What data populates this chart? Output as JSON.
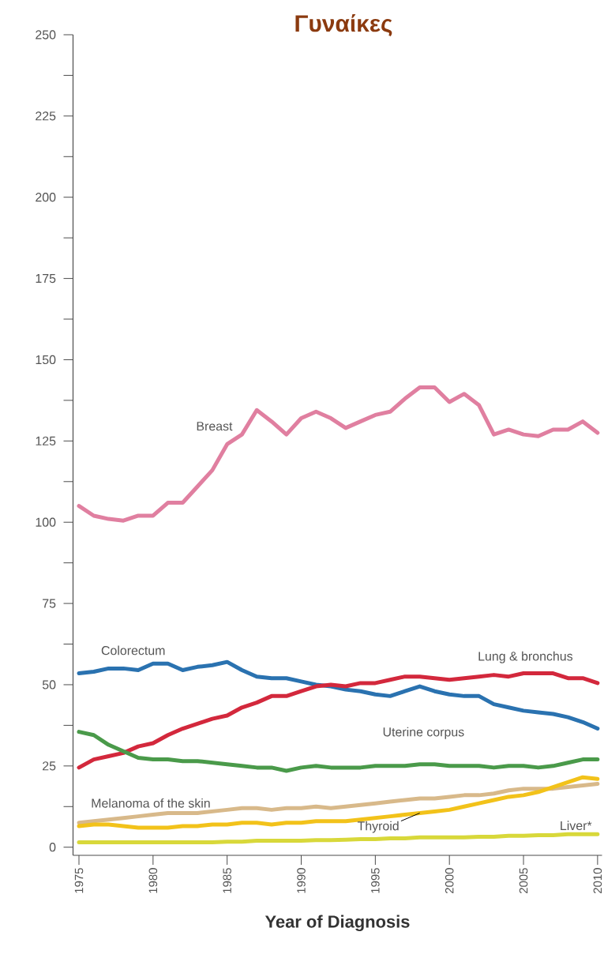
{
  "chart_data": {
    "type": "line",
    "title": "Γυναίκες",
    "xlabel": "Year of Diagnosis",
    "x": [
      1975,
      1976,
      1977,
      1978,
      1979,
      1980,
      1981,
      1982,
      1983,
      1984,
      1985,
      1986,
      1987,
      1988,
      1989,
      1990,
      1991,
      1992,
      1993,
      1994,
      1995,
      1996,
      1997,
      1998,
      1999,
      2000,
      2001,
      2002,
      2003,
      2004,
      2005,
      2006,
      2007,
      2008,
      2009,
      2010
    ],
    "xlim": [
      1974.6,
      2010.3
    ],
    "xticks": [
      1975,
      1980,
      1985,
      1990,
      1995,
      2000,
      2005,
      2010
    ],
    "ylim": [
      -2.5,
      250
    ],
    "yticks": [
      0,
      {
        "value": 12.5,
        "label": null
      },
      25,
      {
        "value": 37.5,
        "label": null
      },
      50,
      {
        "value": 62.5,
        "label": null
      },
      75,
      {
        "value": 87.5,
        "label": null
      },
      100,
      {
        "value": 112.5,
        "label": null
      },
      125,
      {
        "value": 137.5,
        "label": null
      },
      150,
      {
        "value": 162.5,
        "label": null
      },
      175,
      {
        "value": 187.5,
        "label": null
      },
      200,
      {
        "value": 212.5,
        "label": null
      },
      225,
      {
        "value": 237.5,
        "label": null
      },
      250
    ],
    "grid": false,
    "legend": false,
    "marker": "none",
    "line_style": "solid",
    "series": [
      {
        "name": "Breast",
        "color": "#e07fa0",
        "values": [
          105,
          102,
          101,
          100.5,
          102,
          102,
          106,
          106,
          111,
          116,
          124,
          127,
          134.5,
          131,
          127,
          132,
          134,
          132,
          129,
          131,
          133,
          134,
          138,
          141.5,
          141.5,
          137,
          139.5,
          136,
          127,
          128.5,
          127,
          126.5,
          128.5,
          128.5,
          131,
          127.5
        ]
      },
      {
        "name": "Colorectum",
        "color": "#2a72b0",
        "values": [
          53.5,
          54,
          55,
          55,
          54.5,
          56.5,
          56.5,
          54.5,
          55.5,
          56,
          57,
          54.5,
          52.5,
          52,
          52,
          51,
          50,
          49.5,
          48.5,
          48,
          47,
          46.5,
          48,
          49.5,
          48,
          47,
          46.5,
          46.5,
          44,
          43,
          42,
          41.5,
          41,
          40,
          38.5,
          36.5
        ]
      },
      {
        "name": "Lung & bronchus",
        "color": "#d3283c",
        "values": [
          24.5,
          27,
          28,
          29,
          31,
          32,
          34.5,
          36.5,
          38,
          39.5,
          40.5,
          43,
          44.5,
          46.5,
          46.5,
          48,
          49.5,
          50,
          49.5,
          50.5,
          50.5,
          51.5,
          52.5,
          52.5,
          52,
          51.5,
          52,
          52.5,
          53,
          52.5,
          53.5,
          53.5,
          53.5,
          52,
          52,
          50.5
        ]
      },
      {
        "name": "Uterine corpus",
        "color": "#4a9a4a",
        "values": [
          35.5,
          34.5,
          31.5,
          29.5,
          27.5,
          27,
          27,
          26.5,
          26.5,
          26,
          25.5,
          25,
          24.5,
          24.5,
          23.5,
          24.5,
          25,
          24.5,
          24.5,
          24.5,
          25,
          25,
          25,
          25.5,
          25.5,
          25,
          25,
          25,
          24.5,
          25,
          25,
          24.5,
          25,
          26,
          27,
          27
        ]
      },
      {
        "name": "Melanoma of the skin",
        "color": "#d8b98a",
        "values": [
          7.5,
          8,
          8.5,
          9,
          9.5,
          10,
          10.5,
          10.5,
          10.5,
          11,
          11.5,
          12,
          12,
          11.5,
          12,
          12,
          12.5,
          12,
          12.5,
          13,
          13.5,
          14,
          14.5,
          15,
          15,
          15.5,
          16,
          16,
          16.5,
          17.5,
          18,
          18,
          18,
          18.5,
          19,
          19.5
        ]
      },
      {
        "name": "Thyroid",
        "color": "#f2c21a",
        "values": [
          6.5,
          7,
          7,
          6.5,
          6,
          6,
          6,
          6.5,
          6.5,
          7,
          7,
          7.5,
          7.5,
          7,
          7.5,
          7.5,
          8,
          8,
          8,
          8.5,
          9,
          9.5,
          10,
          10.5,
          11,
          11.5,
          12.5,
          13.5,
          14.5,
          15.5,
          16,
          17,
          18.5,
          20,
          21.5,
          21
        ]
      },
      {
        "name": "Liver*",
        "color": "#d8d83a",
        "values": [
          1.5,
          1.5,
          1.5,
          1.5,
          1.5,
          1.5,
          1.5,
          1.5,
          1.5,
          1.5,
          1.7,
          1.7,
          2,
          2,
          2,
          2,
          2.2,
          2.2,
          2.3,
          2.5,
          2.5,
          2.7,
          2.7,
          3,
          3,
          3,
          3,
          3.2,
          3.2,
          3.5,
          3.5,
          3.7,
          3.7,
          4,
          4,
          4
        ]
      }
    ]
  }
}
